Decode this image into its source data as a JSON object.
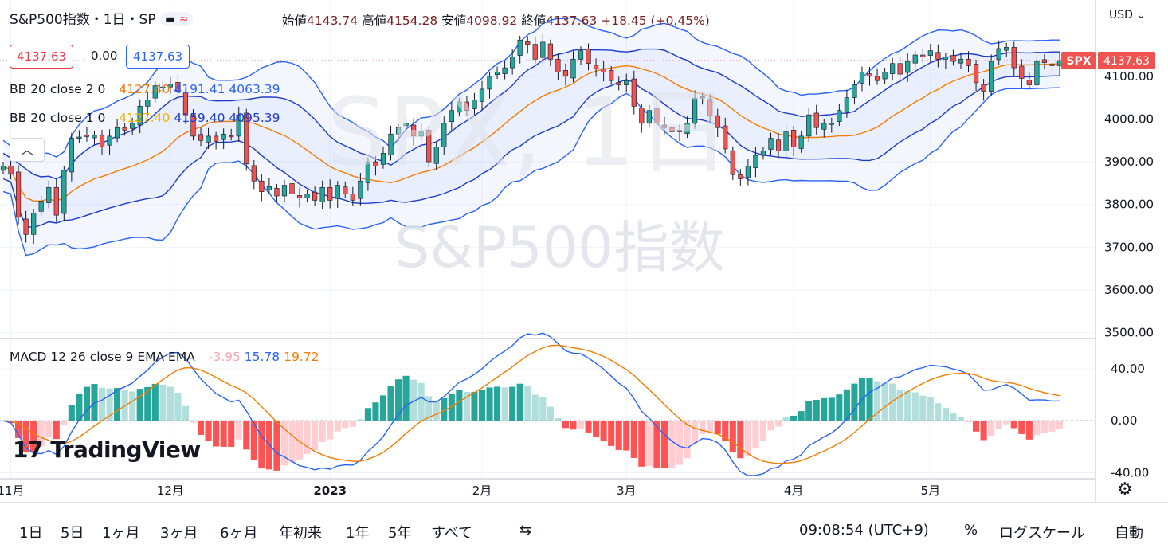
{
  "header": {
    "symbol_title": "S&P500指数・1日・SP",
    "ohlc_items": [
      {
        "label": "始値",
        "value": "4143.74"
      },
      {
        "label": "高値",
        "value": "4154.28"
      },
      {
        "label": "安値",
        "value": "4098.92"
      },
      {
        "label": "終値",
        "value": "4137.63"
      }
    ],
    "change": "+18.45 (+0.45%)",
    "currency": "USD"
  },
  "quote_boxes": {
    "bid": "4137.63",
    "spread": "0.00",
    "ask": "4137.63"
  },
  "indicators": {
    "bb2": {
      "label": "BB 20 close 2 0",
      "basis": "4127.40",
      "upper": "4191.41",
      "lower": "4063.39"
    },
    "bb1": {
      "label": "BB 20 close 1 0",
      "basis": "4127.40",
      "upper": "4159.40",
      "lower": "4095.39"
    },
    "macd": {
      "label": "MACD 12 26 close 9 EMA EMA",
      "hist": "-3.95",
      "macd": "15.78",
      "signal": "19.72"
    }
  },
  "watermark": {
    "symbol": "SPX, 1日",
    "name": "S&P500指数"
  },
  "price_tag": {
    "symbol": "SPX",
    "value": "4137.63"
  },
  "logo_text": "TradingView",
  "bottom": {
    "timeframes": [
      "1日",
      "5日",
      "1ヶ月",
      "3ヶ月",
      "6ヶ月",
      "年初来",
      "1年",
      "5年",
      "すべて"
    ],
    "clock": "09:08:54 (UTC+9)",
    "percent": "%",
    "log": "ログスケール",
    "auto": "自動"
  },
  "colors": {
    "up": "#26a69a",
    "down": "#ef5350",
    "bb_outer": "#2962ff",
    "bb_basis": "#f57c00",
    "macd": "#2962ff",
    "signal": "#f57c00"
  },
  "chart_data": [
    {
      "type": "candlestick",
      "title": "S&P500指数",
      "y_ticks": [
        "4100.00",
        "4000.00",
        "3900.00",
        "3800.00",
        "3700.00",
        "3600.00",
        "3500.00"
      ],
      "ylim": [
        3490,
        4260
      ],
      "x_ticks": [
        {
          "label": "11月",
          "index": 1
        },
        {
          "label": "12月",
          "index": 22
        },
        {
          "label": "2023",
          "index": 43
        },
        {
          "label": "2月",
          "index": 63
        },
        {
          "label": "3月",
          "index": 82
        },
        {
          "label": "4月",
          "index": 104
        },
        {
          "label": "5月",
          "index": 122
        }
      ],
      "close": [
        3890,
        3872,
        3770,
        3730,
        3780,
        3808,
        3840,
        3775,
        3880,
        3955,
        3958,
        3960,
        3962,
        3935,
        3960,
        3980,
        3974,
        3990,
        4030,
        4045,
        4078,
        4075,
        4082,
        4065,
        4010,
        3960,
        3950,
        3960,
        3948,
        3965,
        3960,
        4010,
        3895,
        3855,
        3830,
        3842,
        3820,
        3845,
        3825,
        3815,
        3825,
        3810,
        3840,
        3810,
        3845,
        3825,
        3810,
        3855,
        3900,
        3890,
        3920,
        3965,
        3980,
        3990,
        3960,
        3970,
        3900,
        3935,
        3990,
        4020,
        4040,
        4020,
        4045,
        4070,
        4100,
        4110,
        4120,
        4145,
        4185,
        4175,
        4140,
        4180,
        4140,
        4110,
        4100,
        4140,
        4160,
        4130,
        4118,
        4110,
        4090,
        4080,
        4090,
        4030,
        3990,
        4020,
        3990,
        3980,
        3970,
        3970,
        3990,
        4048,
        4050,
        4008,
        3980,
        3930,
        3870,
        3860,
        3890,
        3915,
        3925,
        3955,
        3925,
        3970,
        3935,
        3960,
        4010,
        3980,
        3990,
        3990,
        4020,
        4050,
        4080,
        4110,
        4100,
        4090,
        4110,
        4130,
        4105,
        4135,
        4150,
        4145,
        4160,
        4140,
        4145,
        4135,
        4140,
        4125,
        4085,
        4065,
        4135,
        4165,
        4168,
        4120,
        4095,
        4080,
        4135,
        4132,
        4125,
        4137
      ],
      "bb_upper_approx": [
        4070,
        4072,
        4040,
        3975,
        3965,
        3960,
        3960,
        3968,
        3975,
        3985,
        3990,
        3993,
        3998,
        4005,
        4014,
        4038,
        4060,
        4075,
        4075,
        4068,
        4064,
        4053,
        4043,
        4040,
        4036,
        4030,
        4030,
        4035,
        4015,
        3995,
        3962,
        3942,
        3930,
        3920,
        3920,
        3920,
        3920,
        3920,
        3918,
        3918,
        3930,
        3960,
        3990,
        4028,
        4075,
        4125,
        4155,
        4175,
        4180,
        4185,
        4195,
        4205,
        4210,
        4218,
        4222,
        4210,
        4180,
        4150,
        4120,
        4110,
        4125,
        4148,
        4160,
        4175,
        4185,
        4195,
        4205,
        4205,
        4205,
        4190,
        4175,
        4160,
        4140,
        4120,
        4095,
        4085,
        4095,
        4108,
        4125,
        4145,
        4165,
        4175,
        4185,
        4182,
        4175,
        4160,
        4148,
        4138,
        4128,
        4125,
        4135,
        4140,
        4150,
        4155,
        4162,
        4170,
        4180,
        4185,
        4190,
        4192,
        4194,
        4195,
        4195
      ],
      "macd_hist_approx": [
        42,
        28,
        20,
        14,
        12,
        10,
        9,
        8,
        10,
        14,
        18,
        18,
        10,
        8,
        5,
        2,
        -4,
        -6,
        -8,
        -10,
        -12,
        -8,
        -6,
        -4,
        -2,
        2,
        6,
        10,
        14,
        14,
        12,
        10,
        10,
        12,
        8,
        4,
        0,
        -6,
        -10,
        -14,
        -16,
        -14,
        -10,
        -6,
        -2,
        0,
        -2,
        -4,
        -6,
        -4,
        -2,
        2,
        6,
        8,
        10,
        12,
        13,
        14,
        13,
        10,
        8,
        6,
        4,
        2
      ]
    },
    {
      "type": "line",
      "title": "MACD 12 26 close 9 EMA EMA",
      "y_ticks": [
        "40.00",
        "0.00",
        "-40.00"
      ],
      "ylim": [
        -44,
        62
      ]
    }
  ]
}
